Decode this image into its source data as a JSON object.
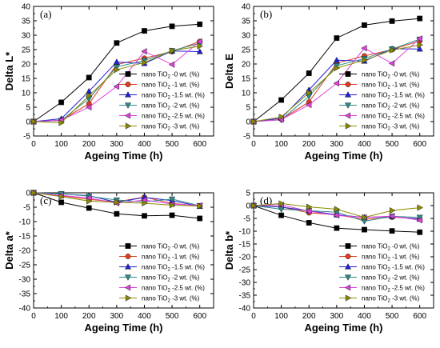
{
  "chart_data": [
    {
      "type": "line",
      "panel_label": "(a)",
      "xlabel": "Ageing Time (h)",
      "ylabel": "Delta L*",
      "xlim": [
        0,
        650
      ],
      "ylim": [
        -5,
        40
      ],
      "xticks": [
        "0",
        "100",
        "200",
        "300",
        "400",
        "500",
        "600"
      ],
      "yticks": [
        "-5",
        "0",
        "5",
        "10",
        "15",
        "20",
        "25",
        "30",
        "35",
        "40"
      ],
      "x": [
        0,
        100,
        200,
        300,
        400,
        500,
        600
      ],
      "legend_position": "bottom-right",
      "series": [
        {
          "name": "nano TiO2 -0 wt. (%)",
          "color": "#000000",
          "marker": "square",
          "values": [
            0,
            6.7,
            15.3,
            27.3,
            31.5,
            33.1,
            33.8
          ]
        },
        {
          "name": "nano TiO2 -1 wt. (%)",
          "color": "#e03c1c",
          "marker": "circle",
          "values": [
            0,
            0.5,
            6.2,
            19.8,
            22.0,
            24.3,
            27.8
          ]
        },
        {
          "name": "nano TiO2 -1.5 wt. (%)",
          "color": "#1f1fd8",
          "marker": "triangle-up",
          "values": [
            0,
            1.0,
            10.5,
            20.7,
            20.2,
            24.5,
            24.3
          ]
        },
        {
          "name": "nano TiO2 -2 wt. (%)",
          "color": "#2e8b8b",
          "marker": "triangle-down",
          "values": [
            0,
            0.4,
            8.0,
            19.0,
            21.2,
            24.6,
            27.2
          ]
        },
        {
          "name": "nano TiO2 -2.5 wt. (%)",
          "color": "#e040e0",
          "marker": "triangle-left",
          "values": [
            0,
            0.5,
            5.0,
            12.2,
            24.4,
            19.8,
            27.8
          ]
        },
        {
          "name": "nano TiO2 -3 wt. (%)",
          "color": "#8b8b00",
          "marker": "triangle-right",
          "values": [
            0,
            -0.4,
            9.0,
            18.0,
            20.5,
            24.6,
            26.2
          ]
        }
      ]
    },
    {
      "type": "line",
      "panel_label": "(b)",
      "xlabel": "Ageing Time (h)",
      "ylabel": "Delta E",
      "xlim": [
        0,
        650
      ],
      "ylim": [
        -5,
        40
      ],
      "xticks": [
        "0",
        "100",
        "200",
        "300",
        "400",
        "500",
        "600"
      ],
      "yticks": [
        "-5",
        "0",
        "5",
        "10",
        "15",
        "20",
        "25",
        "30",
        "35",
        "40"
      ],
      "x": [
        0,
        100,
        200,
        300,
        400,
        500,
        600
      ],
      "legend_position": "bottom-right",
      "series": [
        {
          "name": "nano TiO2 -0 wt. (%)",
          "color": "#000000",
          "marker": "square",
          "values": [
            0,
            7.5,
            16.8,
            29.0,
            33.5,
            34.9,
            35.8
          ]
        },
        {
          "name": "nano TiO2 -1 wt. (%)",
          "color": "#e03c1c",
          "marker": "circle",
          "values": [
            0,
            0.8,
            6.8,
            20.3,
            22.8,
            25.0,
            28.0
          ]
        },
        {
          "name": "nano TiO2 -1.5 wt. (%)",
          "color": "#1f1fd8",
          "marker": "triangle-up",
          "values": [
            0,
            1.2,
            11.0,
            21.3,
            21.0,
            25.3,
            25.2
          ]
        },
        {
          "name": "nano TiO2 -2 wt. (%)",
          "color": "#2e8b8b",
          "marker": "triangle-down",
          "values": [
            0,
            0.6,
            8.8,
            19.4,
            21.9,
            25.2,
            28.6
          ]
        },
        {
          "name": "nano TiO2 -2.5 wt. (%)",
          "color": "#e040e0",
          "marker": "triangle-left",
          "values": [
            0,
            0.7,
            5.8,
            13.3,
            25.5,
            20.2,
            28.8
          ]
        },
        {
          "name": "nano TiO2 -3 wt. (%)",
          "color": "#8b8b00",
          "marker": "triangle-right",
          "values": [
            0,
            1.6,
            10.0,
            18.6,
            21.3,
            24.8,
            26.6
          ]
        }
      ]
    },
    {
      "type": "line",
      "panel_label": "(c)",
      "xlabel": "Ageing Time (h)",
      "ylabel": "Delta a*",
      "xlim": [
        0,
        650
      ],
      "ylim": [
        -40,
        0
      ],
      "xticks": [
        "0",
        "100",
        "200",
        "300",
        "400",
        "500",
        "600"
      ],
      "yticks": [
        "-40",
        "-35",
        "-30",
        "-25",
        "-20",
        "-15",
        "-10",
        "-5",
        "0"
      ],
      "x": [
        0,
        100,
        200,
        300,
        400,
        500,
        600
      ],
      "legend_position": "bottom-right",
      "series": [
        {
          "name": "nano TiO2 -0 wt. (%)",
          "color": "#000000",
          "marker": "square",
          "values": [
            0,
            -3.3,
            -5.3,
            -7.3,
            -8.0,
            -7.8,
            -8.9
          ]
        },
        {
          "name": "nano TiO2 -1 wt. (%)",
          "color": "#e03c1c",
          "marker": "circle",
          "values": [
            0,
            -1.0,
            -2.3,
            -3.1,
            -1.5,
            -3.7,
            -4.5
          ]
        },
        {
          "name": "nano TiO2 -1.5 wt. (%)",
          "color": "#1f1fd8",
          "marker": "triangle-up",
          "values": [
            0,
            -0.4,
            -1.0,
            -3.3,
            -1.6,
            -2.7,
            -4.7
          ]
        },
        {
          "name": "nano TiO2 -2 wt. (%)",
          "color": "#2e8b8b",
          "marker": "triangle-down",
          "values": [
            0,
            -0.3,
            -1.2,
            -2.5,
            -3.1,
            -2.2,
            -4.5
          ]
        },
        {
          "name": "nano TiO2 -2.5 wt. (%)",
          "color": "#e040e0",
          "marker": "triangle-left",
          "values": [
            0,
            -0.9,
            -1.8,
            -3.6,
            -2.5,
            -3.9,
            -4.4
          ]
        },
        {
          "name": "nano TiO2 -3 wt. (%)",
          "color": "#8b8b00",
          "marker": "triangle-right",
          "values": [
            0,
            -1.3,
            -2.9,
            -3.3,
            -3.6,
            -4.3,
            -4.6
          ]
        }
      ]
    },
    {
      "type": "line",
      "panel_label": "(d)",
      "xlabel": "Ageing Time (h)",
      "ylabel": "Delta b*",
      "xlim": [
        0,
        650
      ],
      "ylim": [
        -40,
        5
      ],
      "xticks": [
        "0",
        "100",
        "200",
        "300",
        "400",
        "500",
        "600"
      ],
      "yticks": [
        "-40",
        "-35",
        "-30",
        "-25",
        "-20",
        "-15",
        "-10",
        "-5",
        "0",
        "5"
      ],
      "x": [
        0,
        100,
        200,
        300,
        400,
        500,
        600
      ],
      "legend_position": "bottom-right",
      "series": [
        {
          "name": "nano TiO2 -0 wt. (%)",
          "color": "#000000",
          "marker": "square",
          "values": [
            0,
            -3.8,
            -6.7,
            -8.8,
            -9.4,
            -9.9,
            -10.4
          ]
        },
        {
          "name": "nano TiO2 -1 wt. (%)",
          "color": "#e03c1c",
          "marker": "circle",
          "values": [
            0,
            -0.5,
            -2.8,
            -3.6,
            -5.4,
            -4.5,
            -5.2
          ]
        },
        {
          "name": "nano TiO2 -1.5 wt. (%)",
          "color": "#1f1fd8",
          "marker": "triangle-up",
          "values": [
            0,
            -0.6,
            -2.0,
            -3.6,
            -4.6,
            -4.3,
            -5.3
          ]
        },
        {
          "name": "nano TiO2 -2 wt. (%)",
          "color": "#2e8b8b",
          "marker": "triangle-down",
          "values": [
            0,
            -1.4,
            -2.0,
            -2.6,
            -6.1,
            -4.2,
            -4.6
          ]
        },
        {
          "name": "nano TiO2 -2.5 wt. (%)",
          "color": "#e040e0",
          "marker": "triangle-left",
          "values": [
            0,
            0.3,
            -2.2,
            -3.8,
            -4.6,
            -4.1,
            -5.7
          ]
        },
        {
          "name": "nano TiO2 -3 wt. (%)",
          "color": "#8b8b00",
          "marker": "triangle-right",
          "values": [
            0,
            0.8,
            -0.5,
            -1.4,
            -4.6,
            -1.9,
            -0.8
          ]
        }
      ]
    }
  ]
}
